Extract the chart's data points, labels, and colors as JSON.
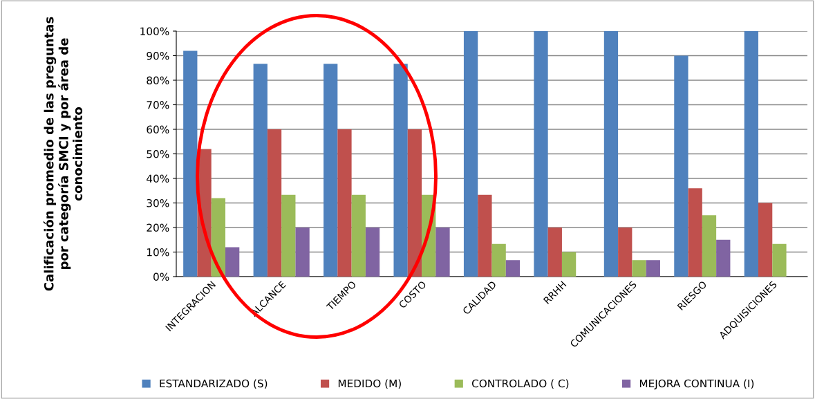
{
  "chart_data": {
    "type": "bar",
    "ylabel": "Calificación promedio de las preguntas\npor categoría SMCI y por área de\nconocimiento",
    "categories": [
      "INTEGRACION",
      "ALCANCE",
      "TIEMPO",
      "COSTO",
      "CALIDAD",
      "RRHH",
      "COMUNICACIONES",
      "RIESGO",
      "ADQUISICIONES"
    ],
    "series": [
      {
        "name": "ESTANDARIZADO (S)",
        "color": "#4f81bd",
        "values": [
          92,
          86.7,
          86.7,
          86.7,
          100,
          100,
          100,
          90,
          100
        ]
      },
      {
        "name": "MEDIDO (M)",
        "color": "#c0504d",
        "values": [
          52,
          60,
          60,
          60,
          33.3,
          20,
          20,
          36,
          30
        ]
      },
      {
        "name": "CONTROLADO ( C)",
        "color": "#9bbb59",
        "values": [
          32,
          33.3,
          33.3,
          33.3,
          13.3,
          10,
          6.7,
          25,
          13.3
        ]
      },
      {
        "name": "MEJORA CONTINUA (I)",
        "color": "#8064a2",
        "values": [
          12,
          20,
          20,
          20,
          6.7,
          0,
          6.7,
          15,
          0
        ]
      }
    ],
    "ylim": [
      0,
      100
    ],
    "yticks": [
      {
        "value": 0,
        "label": "0%"
      },
      {
        "value": 10,
        "label": "10%"
      },
      {
        "value": 20,
        "label": "20%"
      },
      {
        "value": 30,
        "label": "30%"
      },
      {
        "value": 40,
        "label": "40%"
      },
      {
        "value": 50,
        "label": "50%"
      },
      {
        "value": 60,
        "label": "60%"
      },
      {
        "value": 70,
        "label": "70%"
      },
      {
        "value": 80,
        "label": "80%"
      },
      {
        "value": 90,
        "label": "90%"
      },
      {
        "value": 100,
        "label": "100%"
      }
    ],
    "grid": "y",
    "legend": "bottom"
  }
}
